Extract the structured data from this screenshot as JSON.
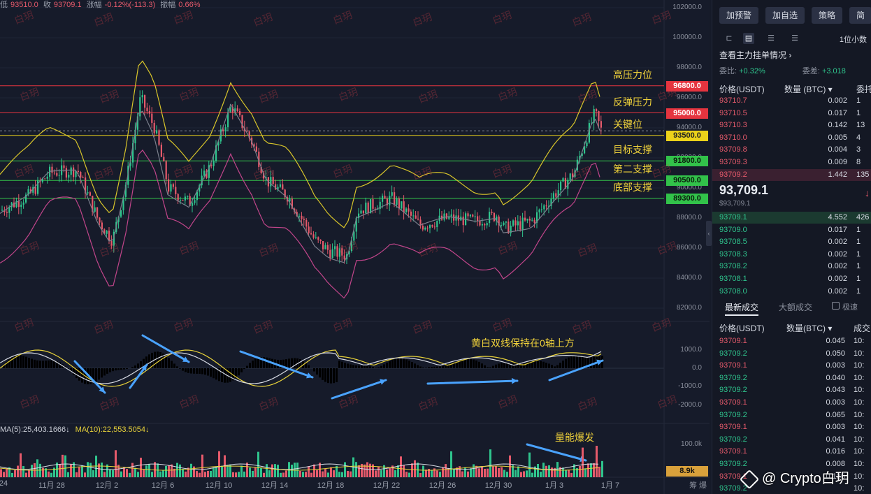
{
  "stats": {
    "low_label": "低",
    "low": "93510.0",
    "close_label": "收",
    "close": "93709.1",
    "change_label": "涨幅",
    "change": "-0.12%(-113.3)",
    "amp_label": "振幅",
    "amp": "0.66%"
  },
  "price_axis": [
    "102000.0",
    "100000.0",
    "98000.0",
    "96000.0",
    "94000.0",
    "92000.0",
    "90000.0",
    "88000.0",
    "86000.0",
    "84000.0",
    "82000.0"
  ],
  "macd_axis": [
    "1000.0",
    "0.0",
    "-1000.0",
    "-2000.0"
  ],
  "volume_axis": "100.0k",
  "volume_current": "8.9k",
  "axis_footer": "筹  爆",
  "dates": [
    "24",
    "11月 28",
    "12月 2",
    "12月 6",
    "12月 10",
    "12月 14",
    "12月 18",
    "12月 22",
    "12月 26",
    "12月 30",
    "1月 3",
    "1月 7"
  ],
  "levels": [
    {
      "label": "高压力位",
      "value": "96800.0",
      "color": "red"
    },
    {
      "label": "反弹压力",
      "value": "95000.0",
      "color": "red"
    },
    {
      "label": "关键位",
      "value": "93500.0",
      "color": "yellow"
    },
    {
      "label": "目标支撑",
      "value": "91800.0",
      "color": "green"
    },
    {
      "label": "第二支撑",
      "value": "90500.0",
      "color": "green"
    },
    {
      "label": "底部支撑",
      "value": "89300.0",
      "color": "green"
    }
  ],
  "annotations": {
    "macd_note": "黄白双线保持在0轴上方",
    "volume_note": "量能爆发"
  },
  "ma_legend": {
    "ma5": "MA(5):25,403.1666↓",
    "ma10": "MA(10):22,553.5054↓"
  },
  "watermark_text": "白玥",
  "side": {
    "buttons": [
      "加预警",
      "加自选",
      "策略",
      "简"
    ],
    "precision": "1位小数",
    "main_orders": "查看主力挂单情况 ›",
    "ratio_label": "委比:",
    "ratio": "+0.32%",
    "diff_label": "委差:",
    "diff": "+3.018",
    "ob_headers": [
      "价格(USDT)",
      "数量 (BTC) ▾",
      "委托"
    ],
    "asks": [
      {
        "p": "93710.7",
        "q": "0.002",
        "t": "1"
      },
      {
        "p": "93710.5",
        "q": "0.017",
        "t": "1"
      },
      {
        "p": "93710.3",
        "q": "0.142",
        "t": "13"
      },
      {
        "p": "93710.0",
        "q": "0.005",
        "t": "4"
      },
      {
        "p": "93709.8",
        "q": "0.004",
        "t": "3"
      },
      {
        "p": "93709.3",
        "q": "0.009",
        "t": "8"
      },
      {
        "p": "93709.2",
        "q": "1.442",
        "t": "135"
      }
    ],
    "last_price": "93,709.1",
    "last_price_usd": "$93,709.1",
    "bids": [
      {
        "p": "93709.1",
        "q": "4.552",
        "t": "426"
      },
      {
        "p": "93709.0",
        "q": "0.017",
        "t": "1"
      },
      {
        "p": "93708.5",
        "q": "0.002",
        "t": "1"
      },
      {
        "p": "93708.3",
        "q": "0.002",
        "t": "1"
      },
      {
        "p": "93708.2",
        "q": "0.002",
        "t": "1"
      },
      {
        "p": "93708.1",
        "q": "0.002",
        "t": "1"
      },
      {
        "p": "93708.0",
        "q": "0.002",
        "t": "1"
      }
    ],
    "trade_tabs": [
      "最新成交",
      "大额成交"
    ],
    "speed_label": "极速",
    "trade_headers": [
      "价格(USDT)",
      "数量(BTC) ▾",
      "成交"
    ],
    "trades": [
      {
        "p": "93709.1",
        "q": "0.045",
        "t": "10:",
        "dir": "down"
      },
      {
        "p": "93709.2",
        "q": "0.050",
        "t": "10:",
        "dir": "up"
      },
      {
        "p": "93709.1",
        "q": "0.003",
        "t": "10:",
        "dir": "down"
      },
      {
        "p": "93709.2",
        "q": "0.040",
        "t": "10:",
        "dir": "up"
      },
      {
        "p": "93709.2",
        "q": "0.043",
        "t": "10:",
        "dir": "up"
      },
      {
        "p": "93709.1",
        "q": "0.003",
        "t": "10:",
        "dir": "down"
      },
      {
        "p": "93709.2",
        "q": "0.065",
        "t": "10:",
        "dir": "up"
      },
      {
        "p": "93709.1",
        "q": "0.003",
        "t": "10:",
        "dir": "down"
      },
      {
        "p": "93709.2",
        "q": "0.041",
        "t": "10:",
        "dir": "up"
      },
      {
        "p": "93709.1",
        "q": "0.016",
        "t": "10:",
        "dir": "down"
      },
      {
        "p": "93709.2",
        "q": "0.008",
        "t": "10:",
        "dir": "up"
      },
      {
        "p": "93709.1",
        "q": "0.136",
        "t": "10:",
        "dir": "down"
      },
      {
        "p": "93709.2",
        "q": "",
        "t": "10:",
        "dir": "up"
      }
    ]
  },
  "brand": "@ Crypto白玥",
  "colors": {
    "up": "#2fc48d",
    "down": "#e55a6b",
    "bg": "#161b2a",
    "yellow": "#ecd21a",
    "green": "#32c24a",
    "red": "#e5343f"
  }
}
